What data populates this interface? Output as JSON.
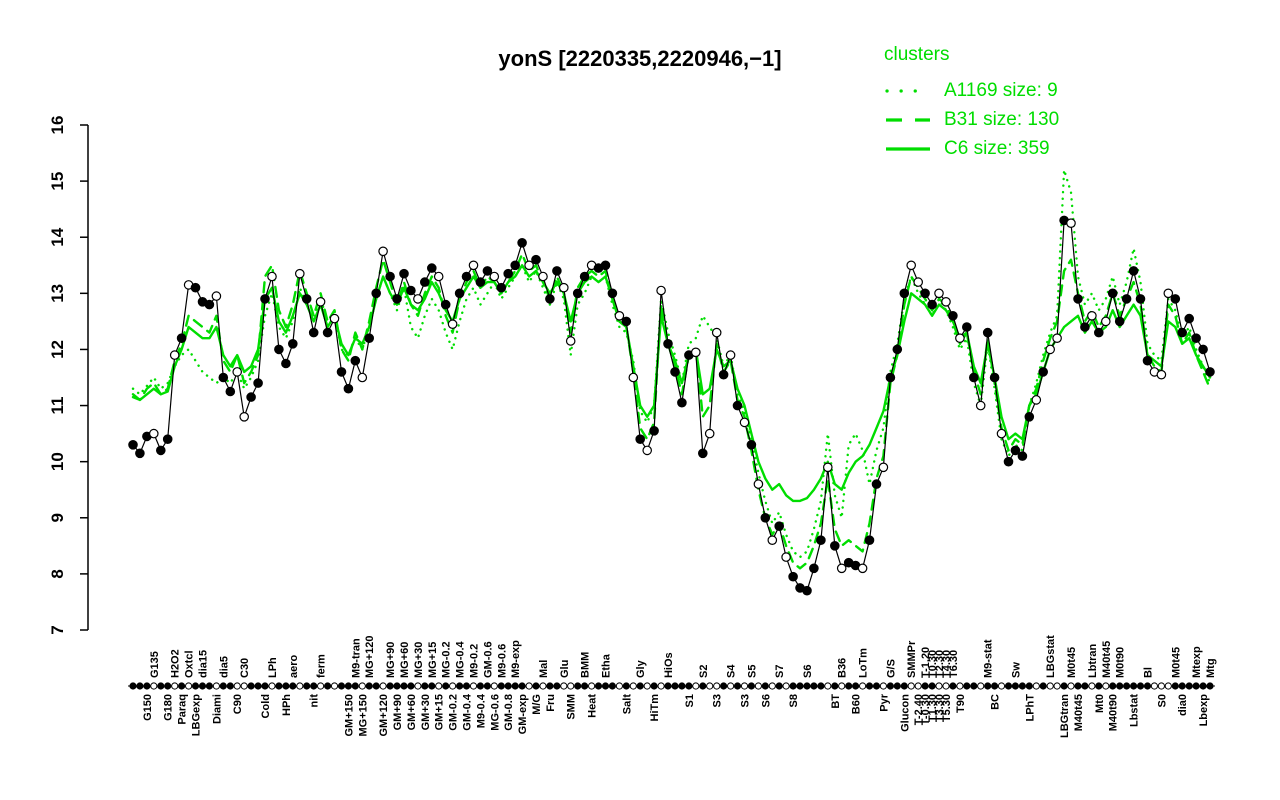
{
  "chart_data": {
    "type": "line",
    "title": "yonS [2220335,2220946,−1]",
    "xlabel": "",
    "ylabel": "",
    "ylim": [
      7,
      16
    ],
    "yticks": [
      7,
      8,
      9,
      10,
      11,
      12,
      13,
      14,
      15,
      16
    ],
    "grid": false,
    "colors": {
      "profile": "#000000",
      "cluster": "#00DD00"
    },
    "legend": {
      "title": "clusters",
      "position": "top-right",
      "entries": [
        {
          "label": "A1169 size: 9",
          "style": "dotted"
        },
        {
          "label": "B31 size: 130",
          "style": "dashed"
        },
        {
          "label": "C6 size: 359",
          "style": "solid"
        }
      ]
    },
    "x_count": 156,
    "xlabels": [
      [
        2,
        2,
        "G150"
      ],
      [
        3,
        1,
        "G135"
      ],
      [
        5,
        2,
        "G180"
      ],
      [
        6,
        1,
        "H2O2"
      ],
      [
        7,
        2,
        "Paraq"
      ],
      [
        8,
        1,
        "Oxtcl"
      ],
      [
        9,
        2,
        "LBGexp"
      ],
      [
        10,
        1,
        "dia15"
      ],
      [
        12,
        2,
        "Diami"
      ],
      [
        13,
        1,
        "dia5"
      ],
      [
        15,
        2,
        "C90"
      ],
      [
        16,
        1,
        "C30"
      ],
      [
        19,
        2,
        "Cold"
      ],
      [
        20,
        1,
        "LPh"
      ],
      [
        22,
        2,
        "HPh"
      ],
      [
        23,
        1,
        "aero"
      ],
      [
        26,
        2,
        "nit"
      ],
      [
        27,
        1,
        "ferm"
      ],
      [
        31,
        2,
        "GM+150"
      ],
      [
        32,
        1,
        "M9-tran"
      ],
      [
        33,
        2,
        "MG+150"
      ],
      [
        34,
        1,
        "MG+120"
      ],
      [
        36,
        2,
        "GM+120"
      ],
      [
        37,
        1,
        "MG+90"
      ],
      [
        38,
        2,
        "GM+90"
      ],
      [
        39,
        1,
        "MG+60"
      ],
      [
        40,
        2,
        "GM+60"
      ],
      [
        41,
        1,
        "MG+30"
      ],
      [
        42,
        2,
        "GM+30"
      ],
      [
        43,
        1,
        "MG+15"
      ],
      [
        44,
        2,
        "GM+15"
      ],
      [
        45,
        1,
        "MG-0.2"
      ],
      [
        46,
        2,
        "GM-0.2"
      ],
      [
        47,
        1,
        "MG-0.4"
      ],
      [
        48,
        2,
        "GM-0.4"
      ],
      [
        49,
        1,
        "M9-0.2"
      ],
      [
        50,
        2,
        "M9-0.4"
      ],
      [
        51,
        1,
        "GM-0.6"
      ],
      [
        52,
        2,
        "MG-0.6"
      ],
      [
        53,
        1,
        "M9-0.6"
      ],
      [
        54,
        2,
        "GM-0.8"
      ],
      [
        55,
        1,
        "M9-exp"
      ],
      [
        56,
        2,
        "GM-exp"
      ],
      [
        58,
        2,
        "M/G"
      ],
      [
        59,
        1,
        "Mal"
      ],
      [
        60,
        2,
        "Fru"
      ],
      [
        62,
        1,
        "Glu"
      ],
      [
        63,
        2,
        "SMM"
      ],
      [
        65,
        1,
        "BMM"
      ],
      [
        66,
        2,
        "Heat"
      ],
      [
        68,
        1,
        "Etha"
      ],
      [
        71,
        2,
        "Salt"
      ],
      [
        73,
        1,
        "Gly"
      ],
      [
        75,
        2,
        "HiTm"
      ],
      [
        77,
        1,
        "HiOs"
      ],
      [
        80,
        2,
        "S1"
      ],
      [
        82,
        1,
        "S2"
      ],
      [
        84,
        2,
        "S3"
      ],
      [
        86,
        1,
        "S4"
      ],
      [
        88,
        2,
        "S3"
      ],
      [
        89,
        1,
        "S5"
      ],
      [
        91,
        2,
        "S6"
      ],
      [
        93,
        1,
        "S7"
      ],
      [
        95,
        2,
        "S8"
      ],
      [
        97,
        1,
        "S6"
      ],
      [
        101,
        2,
        "BT"
      ],
      [
        102,
        1,
        "B36"
      ],
      [
        104,
        2,
        "B60"
      ],
      [
        105,
        1,
        "LoTm"
      ],
      [
        108,
        2,
        "Pyr"
      ],
      [
        109,
        1,
        "G/S"
      ],
      [
        111,
        2,
        "Glucon"
      ],
      [
        112,
        1,
        "SMMPr"
      ],
      [
        113,
        2,
        "T-2.40"
      ],
      [
        114,
        1,
        "T-1.20"
      ],
      [
        114,
        2,
        "T-0.30"
      ],
      [
        115,
        1,
        "T0.30"
      ],
      [
        115,
        2,
        "T1.30"
      ],
      [
        116,
        1,
        "T2.30"
      ],
      [
        116,
        2,
        "T3.30"
      ],
      [
        117,
        1,
        "T4.30"
      ],
      [
        117,
        2,
        "T5.30"
      ],
      [
        118,
        1,
        "T6.30"
      ],
      [
        119,
        2,
        "T90"
      ],
      [
        123,
        1,
        "M9-stat"
      ],
      [
        124,
        2,
        "BC"
      ],
      [
        127,
        1,
        "Sw"
      ],
      [
        129,
        2,
        "LPhT"
      ],
      [
        132,
        1,
        "LBGstat"
      ],
      [
        134,
        2,
        "LBGtran"
      ],
      [
        135,
        1,
        "M0t45"
      ],
      [
        136,
        2,
        "M40t45"
      ],
      [
        138,
        1,
        "Lbtran"
      ],
      [
        139,
        2,
        "Mt0"
      ],
      [
        140,
        1,
        "M40t45"
      ],
      [
        141,
        2,
        "M40t90"
      ],
      [
        142,
        1,
        "M0t90"
      ],
      [
        144,
        2,
        "Lbstat"
      ],
      [
        146,
        1,
        "Bl"
      ],
      [
        148,
        2,
        "S0"
      ],
      [
        150,
        1,
        "M0t45"
      ],
      [
        151,
        2,
        "dia0"
      ],
      [
        153,
        1,
        "Mtexp"
      ],
      [
        154,
        2,
        "Lbexp"
      ],
      [
        155,
        1,
        "Mtg"
      ]
    ],
    "series": [
      {
        "name": "yonS profile",
        "color": "#000000",
        "dash": "solid",
        "point_types": "fffoffofofffoffoofffofffoffofofffoffoffffoffofoffoffoffffofoffooffofffofofofoffffofoofofofofofofffffofoffoffofffooffoofoffoffoffffofoofoffofoffffffoooff",
        "values": [
          10.3,
          10.15,
          10.45,
          10.5,
          10.2,
          10.4,
          11.9,
          12.2,
          13.15,
          13.1,
          12.85,
          12.8,
          12.95,
          11.5,
          11.25,
          11.6,
          10.8,
          11.15,
          11.4,
          12.9,
          13.3,
          12.0,
          11.75,
          12.1,
          13.35,
          12.9,
          12.3,
          12.85,
          12.3,
          12.55,
          11.6,
          11.3,
          11.8,
          11.5,
          12.2,
          13.0,
          13.75,
          13.3,
          12.9,
          13.35,
          13.05,
          12.9,
          13.2,
          13.45,
          13.3,
          12.8,
          12.45,
          13.0,
          13.3,
          13.5,
          13.2,
          13.4,
          13.3,
          13.1,
          13.35,
          13.5,
          13.9,
          13.5,
          13.6,
          13.3,
          12.9,
          13.4,
          13.1,
          12.15,
          13.0,
          13.3,
          13.5,
          13.45,
          13.5,
          13.0,
          12.6,
          12.5,
          11.5,
          10.4,
          10.2,
          10.55,
          13.05,
          12.1,
          11.6,
          11.05,
          11.9,
          11.95,
          10.15,
          10.5,
          12.3,
          11.55,
          11.9,
          11.0,
          10.7,
          10.3,
          9.6,
          9.0,
          8.6,
          8.85,
          8.3,
          7.95,
          7.75,
          7.7,
          8.1,
          8.6,
          9.9,
          8.5,
          8.1,
          8.2,
          8.15,
          8.1,
          8.6,
          9.6,
          9.9,
          11.5,
          12.0,
          13.0,
          13.5,
          13.2,
          13.0,
          12.8,
          13.0,
          12.85,
          12.6,
          12.2,
          12.4,
          11.5,
          11.0,
          12.3,
          11.5,
          10.5,
          10.0,
          10.2,
          10.1,
          10.8,
          11.1,
          11.6,
          12.0,
          12.2,
          14.3,
          14.25,
          12.9,
          12.4,
          12.6,
          12.3,
          12.5,
          13.0,
          12.5,
          12.9,
          13.4,
          12.9,
          11.8,
          11.6,
          11.55,
          13.0,
          12.9,
          12.3,
          12.55,
          12.2,
          12.0,
          11.6
        ]
      },
      {
        "name": "A1169",
        "color": "#00DD00",
        "dash": "dotted",
        "values": [
          11.3,
          11.2,
          11.35,
          11.5,
          11.3,
          11.4,
          11.7,
          11.9,
          12.0,
          11.8,
          11.6,
          11.5,
          11.4,
          11.5,
          11.4,
          11.6,
          11.3,
          11.5,
          11.8,
          12.6,
          13.0,
          12.4,
          12.2,
          12.5,
          13.1,
          12.8,
          12.5,
          12.9,
          12.5,
          12.6,
          12.0,
          11.9,
          12.2,
          12.0,
          12.4,
          12.9,
          13.3,
          13.0,
          12.7,
          13.1,
          12.4,
          12.2,
          12.6,
          12.9,
          12.7,
          12.3,
          12.0,
          12.5,
          12.9,
          13.1,
          12.8,
          13.0,
          13.2,
          12.9,
          13.1,
          13.3,
          13.5,
          13.2,
          13.4,
          13.1,
          12.8,
          13.2,
          12.9,
          11.9,
          12.8,
          13.0,
          13.3,
          13.2,
          13.3,
          12.8,
          12.4,
          12.3,
          11.8,
          10.9,
          10.7,
          11.0,
          12.9,
          12.3,
          11.9,
          11.4,
          12.1,
          12.2,
          12.6,
          12.4,
          12.2,
          11.7,
          11.9,
          11.2,
          10.9,
          10.4,
          9.8,
          9.3,
          8.9,
          9.1,
          8.7,
          8.4,
          8.3,
          8.4,
          8.8,
          9.3,
          10.5,
          9.4,
          9.0,
          10.3,
          10.5,
          10.2,
          9.6,
          10.2,
          10.6,
          11.6,
          12.1,
          12.9,
          13.3,
          13.0,
          12.8,
          12.6,
          12.9,
          12.7,
          12.4,
          12.0,
          12.2,
          11.4,
          11.0,
          12.1,
          11.3,
          10.4,
          10.1,
          10.3,
          10.2,
          11.0,
          11.4,
          11.9,
          12.3,
          12.6,
          15.2,
          14.8,
          13.3,
          12.8,
          13.0,
          12.7,
          12.9,
          13.3,
          12.8,
          13.2,
          13.8,
          13.2,
          12.1,
          11.9,
          11.8,
          12.9,
          12.7,
          12.2,
          12.4,
          12.0,
          11.7,
          11.4
        ]
      },
      {
        "name": "B31",
        "color": "#00DD00",
        "dash": "dashed",
        "values": [
          11.2,
          11.1,
          11.3,
          11.4,
          11.2,
          11.3,
          11.8,
          12.1,
          12.6,
          12.5,
          12.4,
          12.3,
          12.6,
          11.8,
          11.6,
          11.9,
          11.4,
          11.6,
          11.9,
          13.3,
          13.5,
          12.7,
          12.4,
          12.8,
          13.4,
          13.0,
          12.6,
          13.0,
          12.5,
          12.7,
          12.0,
          11.8,
          12.3,
          12.0,
          12.5,
          13.1,
          13.6,
          13.2,
          12.8,
          13.2,
          12.8,
          12.6,
          13.0,
          13.3,
          13.1,
          12.6,
          12.3,
          12.9,
          13.2,
          13.4,
          13.1,
          13.3,
          13.2,
          13.0,
          13.2,
          13.4,
          13.7,
          13.4,
          13.5,
          13.2,
          12.9,
          13.3,
          13.0,
          12.3,
          13.1,
          13.3,
          13.4,
          13.3,
          13.4,
          12.9,
          12.5,
          12.4,
          11.6,
          10.6,
          10.4,
          10.7,
          12.8,
          12.1,
          11.7,
          11.2,
          11.9,
          12.0,
          10.8,
          11.0,
          12.1,
          11.6,
          11.8,
          11.1,
          10.8,
          10.2,
          9.5,
          9.0,
          8.7,
          8.9,
          8.5,
          8.2,
          8.1,
          8.2,
          8.5,
          8.9,
          9.7,
          8.8,
          8.5,
          8.6,
          8.5,
          8.4,
          8.9,
          9.7,
          10.1,
          11.4,
          11.9,
          12.8,
          13.3,
          13.1,
          12.9,
          12.7,
          12.9,
          12.8,
          12.5,
          12.1,
          12.3,
          11.6,
          11.2,
          12.2,
          11.4,
          10.6,
          10.2,
          10.4,
          10.3,
          11.0,
          11.3,
          11.8,
          12.2,
          12.5,
          13.4,
          13.6,
          13.0,
          12.5,
          12.7,
          12.4,
          12.6,
          13.0,
          12.6,
          12.9,
          13.2,
          12.8,
          11.9,
          11.7,
          11.6,
          12.8,
          12.6,
          12.1,
          12.3,
          11.9,
          11.6,
          11.3
        ]
      },
      {
        "name": "C6",
        "color": "#00DD00",
        "dash": "solid",
        "values": [
          11.15,
          11.1,
          11.2,
          11.3,
          11.2,
          11.25,
          11.7,
          12.0,
          12.4,
          12.3,
          12.2,
          12.2,
          12.4,
          11.9,
          11.7,
          11.9,
          11.6,
          11.7,
          12.0,
          12.9,
          13.1,
          12.5,
          12.3,
          12.6,
          13.0,
          12.8,
          12.5,
          12.8,
          12.4,
          12.6,
          12.1,
          11.9,
          12.2,
          12.1,
          12.4,
          12.9,
          13.3,
          13.0,
          12.8,
          13.1,
          12.8,
          12.7,
          12.9,
          13.2,
          13.0,
          12.7,
          12.5,
          12.9,
          13.1,
          13.3,
          13.1,
          13.2,
          13.2,
          13.0,
          13.2,
          13.3,
          13.5,
          13.3,
          13.4,
          13.2,
          13.0,
          13.2,
          13.0,
          12.5,
          13.0,
          13.2,
          13.3,
          13.2,
          13.3,
          12.9,
          12.5,
          12.4,
          11.7,
          11.0,
          10.8,
          11.0,
          12.6,
          12.1,
          11.8,
          11.4,
          11.9,
          12.0,
          11.2,
          11.3,
          12.0,
          11.7,
          11.8,
          11.3,
          11.0,
          10.5,
          10.0,
          9.7,
          9.5,
          9.6,
          9.4,
          9.3,
          9.3,
          9.35,
          9.5,
          9.7,
          10.0,
          9.6,
          9.5,
          9.8,
          10.0,
          10.1,
          10.3,
          10.6,
          10.9,
          11.5,
          11.9,
          12.5,
          13.0,
          12.9,
          12.8,
          12.6,
          12.8,
          12.7,
          12.5,
          12.2,
          12.3,
          11.7,
          11.4,
          12.1,
          11.5,
          10.8,
          10.4,
          10.5,
          10.4,
          11.0,
          11.2,
          11.6,
          12.0,
          12.2,
          12.4,
          12.5,
          12.6,
          12.3,
          12.5,
          12.3,
          12.4,
          12.7,
          12.4,
          12.6,
          12.8,
          12.6,
          11.9,
          11.8,
          11.7,
          12.5,
          12.4,
          12.1,
          12.2,
          11.9,
          11.7,
          11.5
        ]
      }
    ]
  }
}
